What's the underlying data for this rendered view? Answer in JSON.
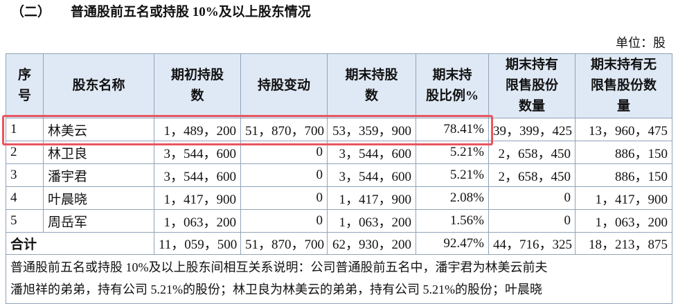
{
  "title": {
    "number": "（二）",
    "text": "普通股前五名或持股 10%及以上股东情况"
  },
  "unit": "单位：股",
  "table": {
    "header": [
      [
        "序",
        "号"
      ],
      [
        "股东名称"
      ],
      [
        "期初持股",
        "数"
      ],
      [
        "持股变动"
      ],
      [
        "期末持股",
        "数"
      ],
      [
        "期末持",
        "股比例%"
      ],
      [
        "期末持有",
        "限售股份",
        "数量"
      ],
      [
        "期末持有无",
        "限售股份数",
        "量"
      ]
    ],
    "rows": [
      [
        "1",
        "林美云",
        "1，489，200",
        "51，870，700",
        "53，359，900",
        "78.41%",
        "39，399，425",
        "13，960，475"
      ],
      [
        "2",
        "林卫良",
        "3，544，600",
        "0",
        "3，544，600",
        "5.21%",
        "2，658，450",
        "886，150"
      ],
      [
        "3",
        "潘宇君",
        "3，544，600",
        "0",
        "3，544，600",
        "5.21%",
        "2，658，450",
        "886，150"
      ],
      [
        "4",
        "叶晨晓",
        "1，417，900",
        "0",
        "1，417，900",
        "2.08%",
        "0",
        "1，417，900"
      ],
      [
        "5",
        "周岳军",
        "1，063，200",
        "0",
        "1，063，200",
        "1.56%",
        "0",
        "1，063，200"
      ]
    ],
    "total": [
      "合计",
      "11，059，500",
      "51，870，700",
      "62，930，200",
      "92.47%",
      "44，716，325",
      "18，213，875"
    ],
    "note": [
      "普通股前五名或持股 10%及以上股东间相互关系说明：公司普通股前五名中，潘宇君为林美云前夫",
      "潘旭祥的弟弟，持有公司 5.21%的股份；林卫良为林美云的弟弟，持有公司 5.21%的股份；叶晨晓"
    ]
  }
}
